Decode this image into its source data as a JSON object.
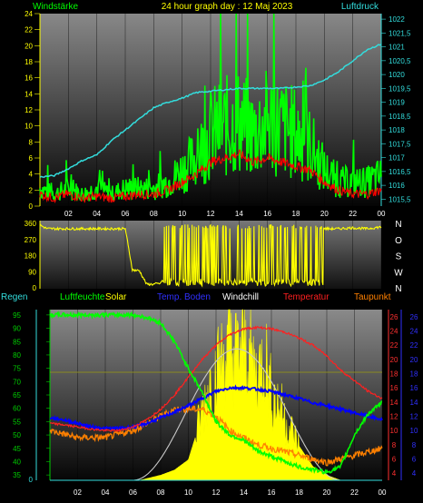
{
  "header": {
    "left_label": "Windstärke",
    "center_title": "24 hour graph day : 12 Maj 2023",
    "right_label": "Luftdruck"
  },
  "colors": {
    "wind": "#00ff00",
    "wind_avg": "#ff0000",
    "pressure": "#33dddd",
    "direction": "#ffff00",
    "humidity": "#00ff00",
    "solar": "#ffff00",
    "soil": "#0000ff",
    "windchill": "#ffffff",
    "temperature": "#ff2020",
    "dewpoint": "#ff8000",
    "axis_yellow": "#ffff00",
    "axis_green": "#00cc00",
    "axis_red": "#ff3030",
    "axis_blue": "#3030ff",
    "axis_cyan": "#33dddd"
  },
  "chart_data": [
    {
      "type": "line",
      "title": "24 hour graph day : 12 Maj 2023",
      "x_ticks": [
        "02",
        "04",
        "06",
        "08",
        "10",
        "12",
        "14",
        "16",
        "18",
        "20",
        "22",
        "00"
      ],
      "y_left_label": "Windstärke",
      "y_left_ticks": [
        "0",
        "2",
        "4",
        "6",
        "8",
        "10",
        "12",
        "14",
        "16",
        "18",
        "20",
        "22",
        "24"
      ],
      "ylim_left": [
        0,
        24
      ],
      "y_right_label": "Luftdruck",
      "y_right_ticks": [
        "1015,5",
        "1016",
        "1016,5",
        "1017",
        "1017,5",
        "1018",
        "1018,5",
        "1019",
        "1019,5",
        "1020",
        "1020,5",
        "1021",
        "1021,5",
        "1022"
      ],
      "ylim_right": [
        1015.25,
        1022.2
      ],
      "series": [
        {
          "name": "Luftdruck",
          "axis": "right",
          "x": [
            0,
            1,
            2,
            3,
            4,
            5,
            6,
            7,
            8,
            9,
            10,
            11,
            12,
            13,
            14,
            15,
            16,
            17,
            18,
            19,
            20,
            21,
            22,
            23,
            24
          ],
          "values": [
            1016.3,
            1016.35,
            1016.6,
            1016.9,
            1017.1,
            1017.6,
            1018.0,
            1018.4,
            1018.8,
            1019.0,
            1019.15,
            1019.35,
            1019.4,
            1019.45,
            1019.5,
            1019.5,
            1019.5,
            1019.5,
            1019.55,
            1019.6,
            1019.8,
            1020.1,
            1020.5,
            1020.9,
            1021.1
          ]
        },
        {
          "name": "Windstärke",
          "axis": "left",
          "x": [
            0,
            1,
            2,
            3,
            4,
            5,
            6,
            7,
            8,
            9,
            10,
            11,
            12,
            13,
            14,
            15,
            16,
            17,
            18,
            19,
            20,
            21,
            22,
            23,
            24
          ],
          "values": [
            3,
            2,
            3,
            2,
            3,
            2,
            3,
            3,
            3,
            4,
            6,
            8,
            12,
            13,
            14,
            12,
            14,
            13,
            12,
            10,
            6,
            4,
            4,
            4,
            5
          ]
        },
        {
          "name": "Windmittel",
          "axis": "left",
          "x": [
            0,
            1,
            2,
            3,
            4,
            5,
            6,
            7,
            8,
            9,
            10,
            11,
            12,
            13,
            14,
            15,
            16,
            17,
            18,
            19,
            20,
            21,
            22,
            23,
            24
          ],
          "values": [
            1.5,
            1,
            1.5,
            1,
            1.2,
            1,
            1.2,
            1.5,
            1.5,
            2,
            3,
            4,
            5.5,
            6,
            6.5,
            5.5,
            6,
            5.5,
            5,
            4.5,
            3,
            2,
            1.5,
            1.5,
            2
          ]
        }
      ]
    },
    {
      "type": "line",
      "y_left_ticks": [
        "0",
        "90",
        "180",
        "270",
        "360"
      ],
      "ylim": [
        0,
        360
      ],
      "y_right_ticks": [
        "N",
        "W",
        "S",
        "O",
        "N"
      ],
      "series": [
        {
          "name": "Windrichtung",
          "x": [
            0,
            0.5,
            1,
            2,
            3,
            4,
            5,
            6,
            6.5,
            7,
            7.5,
            8,
            9,
            10,
            11,
            12,
            13,
            14,
            15,
            16,
            17,
            18,
            19,
            20,
            21,
            22,
            23,
            24
          ],
          "values": [
            350,
            330,
            330,
            330,
            330,
            330,
            330,
            330,
            100,
            95,
            20,
            20,
            30,
            25,
            25,
            30,
            35,
            30,
            25,
            30,
            30,
            30,
            35,
            330,
            330,
            335,
            330,
            340
          ]
        }
      ]
    },
    {
      "type": "line",
      "legend": [
        "Regen",
        "Luftfeuchte",
        "Solar",
        "Temp. Boden",
        "Windchill",
        "Temperatur",
        "Taupunkt"
      ],
      "x_ticks": [
        "02",
        "04",
        "06",
        "08",
        "10",
        "12",
        "14",
        "16",
        "18",
        "20",
        "22",
        "00"
      ],
      "y_left_ticks": [
        "0"
      ],
      "y_humidity_ticks": [
        "35",
        "40",
        "45",
        "50",
        "55",
        "60",
        "65",
        "70",
        "75",
        "80",
        "85",
        "90",
        "95"
      ],
      "ylim_humidity": [
        33,
        97
      ],
      "y_temp_ticks": [
        "4",
        "6",
        "8",
        "10",
        "12",
        "14",
        "16",
        "18",
        "20",
        "22",
        "24",
        "26"
      ],
      "y_temp2_ticks": [
        "4",
        "6",
        "8",
        "10",
        "12",
        "14",
        "16",
        "18",
        "20",
        "22",
        "24",
        "26"
      ],
      "ylim_temp": [
        3,
        27
      ],
      "series": [
        {
          "name": "Luftfeuchte",
          "x": [
            0,
            1,
            2,
            3,
            4,
            5,
            6,
            7,
            8,
            9,
            10,
            11,
            12,
            13,
            14,
            15,
            16,
            17,
            18,
            19,
            20,
            21,
            22,
            23,
            24
          ],
          "values": [
            95,
            95,
            95,
            95,
            95,
            95,
            95,
            94,
            92,
            85,
            75,
            66,
            55,
            50,
            48,
            44,
            42,
            40,
            38,
            37,
            36,
            38,
            50,
            58,
            62
          ]
        },
        {
          "name": "Temperatur",
          "x": [
            0,
            1,
            2,
            3,
            4,
            5,
            6,
            7,
            8,
            9,
            10,
            11,
            12,
            13,
            14,
            15,
            16,
            17,
            18,
            19,
            20,
            21,
            22,
            23,
            24
          ],
          "values": [
            11,
            10.8,
            10.5,
            10.2,
            10,
            10,
            10.5,
            11.5,
            13,
            15,
            17.5,
            20,
            22,
            23.5,
            24.3,
            24.5,
            24.3,
            23.8,
            23,
            22,
            20.5,
            18.5,
            17,
            15.5,
            14.5
          ]
        },
        {
          "name": "Temp. Boden",
          "x": [
            0,
            1,
            2,
            3,
            4,
            5,
            6,
            7,
            8,
            9,
            10,
            11,
            12,
            13,
            14,
            15,
            16,
            17,
            18,
            19,
            20,
            21,
            22,
            23,
            24
          ],
          "values": [
            11.8,
            11.5,
            11,
            10.5,
            10.3,
            10.3,
            10.5,
            11,
            11.8,
            12.6,
            13.5,
            14.5,
            15.5,
            16,
            16,
            15.8,
            15.5,
            15,
            14.5,
            13.9,
            13.5,
            13,
            12.5,
            12,
            11.5
          ]
        },
        {
          "name": "Taupunkt",
          "x": [
            0,
            1,
            2,
            3,
            4,
            5,
            6,
            7,
            8,
            9,
            10,
            11,
            12,
            13,
            14,
            15,
            16,
            17,
            18,
            19,
            20,
            21,
            22,
            23,
            24
          ],
          "values": [
            10,
            9.5,
            9,
            9,
            9,
            9.5,
            10,
            11,
            12,
            13,
            13,
            13,
            12,
            10,
            9,
            8,
            7.5,
            7,
            6.5,
            6,
            5.5,
            6,
            6.5,
            7,
            7.5
          ]
        },
        {
          "name": "Solar",
          "x": [
            0,
            6.5,
            7,
            8,
            9,
            10,
            10.5,
            11,
            11.5,
            12,
            12.5,
            13,
            13.5,
            14,
            14.5,
            15,
            15.5,
            16,
            16.5,
            17,
            17.5,
            18,
            19,
            20,
            21,
            22,
            24
          ],
          "values": [
            0,
            0,
            1,
            3,
            6,
            12,
            25,
            40,
            55,
            62,
            70,
            78,
            72,
            80,
            70,
            60,
            75,
            50,
            45,
            35,
            28,
            20,
            8,
            3,
            0,
            0,
            0
          ]
        },
        {
          "name": "Solar max",
          "x": [
            6,
            8,
            10,
            12,
            13.5,
            15,
            17,
            19,
            21
          ],
          "values": [
            0,
            15,
            45,
            70,
            75,
            70,
            45,
            15,
            0
          ]
        }
      ]
    }
  ]
}
